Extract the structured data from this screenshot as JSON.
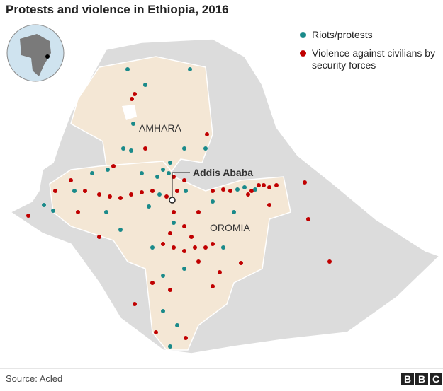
{
  "title": "Protests and violence in Ethiopia, 2016",
  "legend": [
    {
      "label": "Riots/protests",
      "color": "#1a8a8a"
    },
    {
      "label": "Violence against civilians by security forces",
      "color": "#c00000"
    }
  ],
  "regions": [
    "AMHARA",
    "OROMIA"
  ],
  "city": "Addis Ababa",
  "source": "Source: Acled",
  "logo": [
    "B",
    "B",
    "C"
  ]
}
